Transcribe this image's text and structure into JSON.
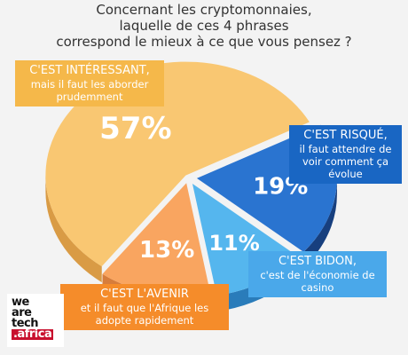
{
  "title_lines": [
    "Concernant les cryptomonnaies,",
    "laquelle de ces 4 phrases",
    "correspond le mieux à ce que vous pensez ?"
  ],
  "chart_data": {
    "type": "pie",
    "title": "Concernant les cryptomonnaies, laquelle de ces 4 phrases correspond le mieux à ce que vous pensez ?",
    "categories": [
      "C'EST INTÉRESSANT, mais il faut les aborder prudemment",
      "C'EST RISQUÉ, il faut attendre de voir comment ça évolue",
      "C'EST BIDON, c'est de l'économie de casino",
      "C'EST L'AVENIR et il faut que l'Afrique les adopte rapidement"
    ],
    "values": [
      57,
      19,
      11,
      13
    ],
    "value_labels": [
      "57%",
      "19%",
      "11%",
      "13%"
    ],
    "colors": [
      "#f9c772",
      "#2a74d0",
      "#55b6ee",
      "#f9a560"
    ],
    "side_colors": [
      "#d99b45",
      "#173f7e",
      "#2a7cba",
      "#d77d3b"
    ],
    "style": "3D tilted pie, exploded slices"
  },
  "callouts": {
    "interesting": {
      "head": "C'EST INTÉRESSANT,",
      "body": "mais il faut les aborder prudemment"
    },
    "risk": {
      "head": "C'EST RISQUÉ,",
      "body": "il faut attendre de voir comment ça évolue"
    },
    "bidon": {
      "head": "C'EST BIDON,",
      "body": "c'est de l'économie de casino"
    },
    "avenir": {
      "head": "C'EST L'AVENIR",
      "body": "et il faut que l'Afrique les adopte rapidement"
    }
  },
  "logo": {
    "lines": [
      "we",
      "are",
      "tech"
    ],
    "tld": ".africa"
  }
}
